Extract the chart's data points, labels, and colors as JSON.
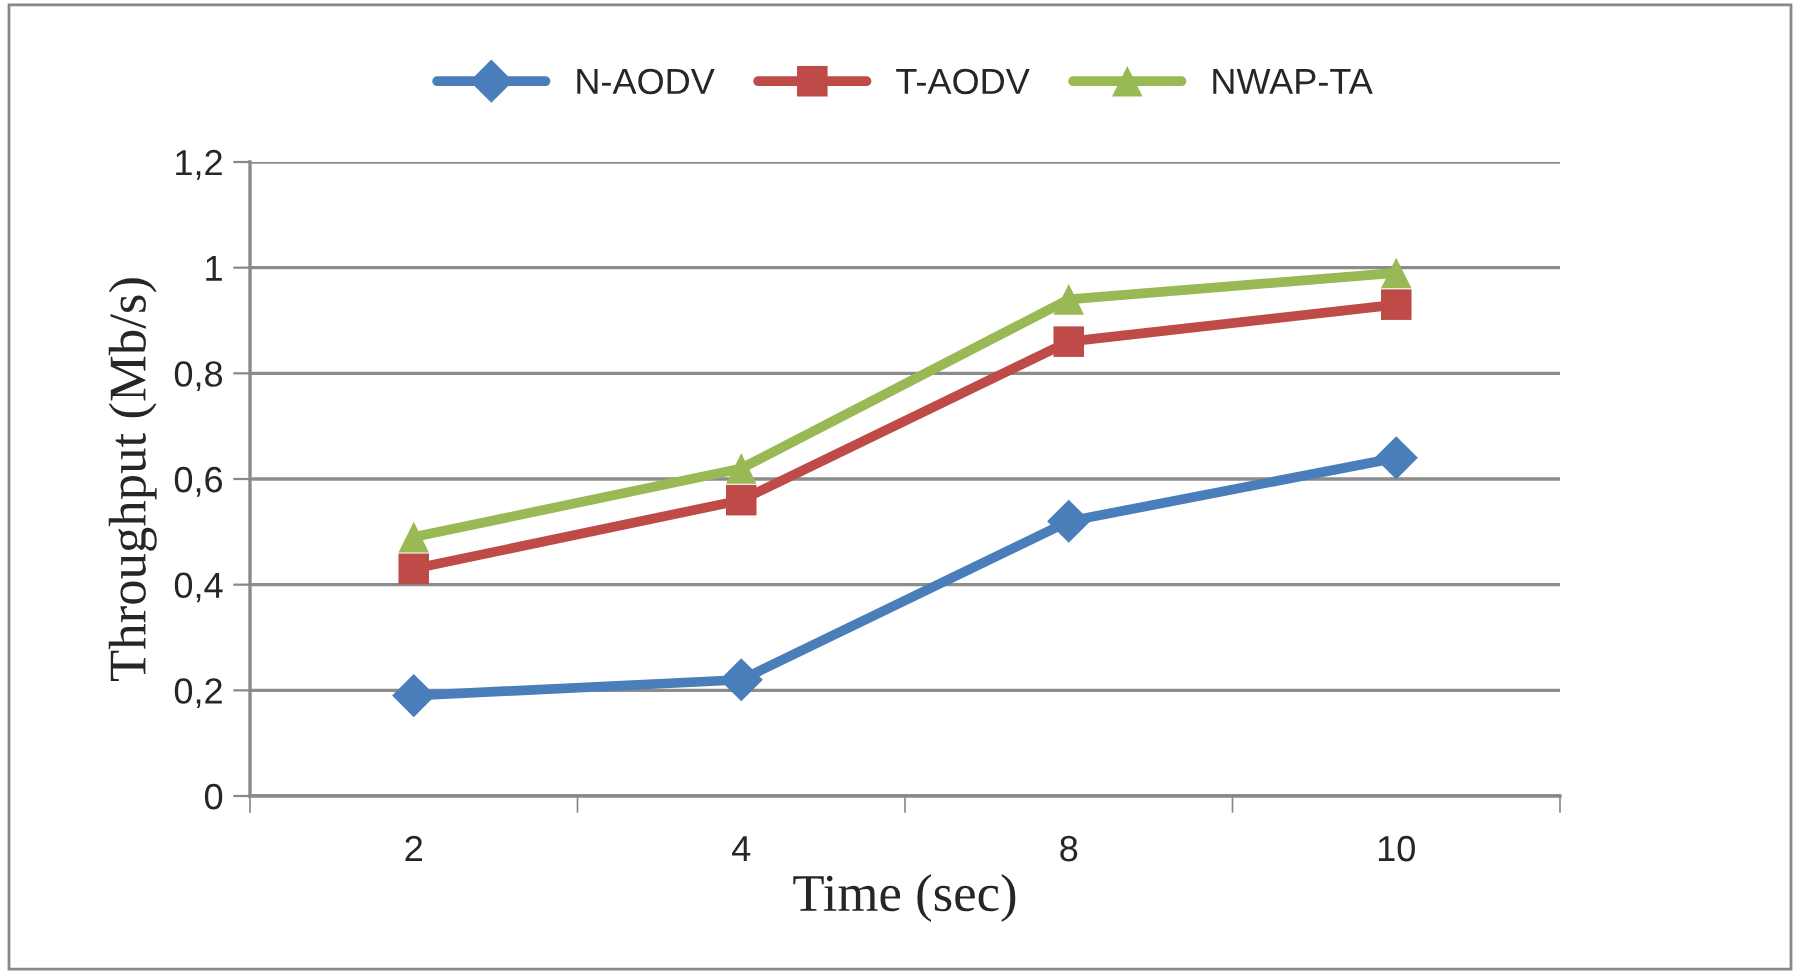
{
  "chart_data": {
    "type": "line",
    "xlabel": "Time (sec)",
    "ylabel": "Throughput (Mb/s)",
    "categories": [
      "2",
      "4",
      "8",
      "10"
    ],
    "series": [
      {
        "name": "N-AODV",
        "color": "#4a7ebb",
        "marker": "diamond",
        "values": [
          0.19,
          0.22,
          0.52,
          0.64
        ]
      },
      {
        "name": "T-AODV",
        "color": "#be4b48",
        "marker": "square",
        "values": [
          0.43,
          0.56,
          0.86,
          0.93
        ]
      },
      {
        "name": "NWAP-TA",
        "color": "#98b954",
        "marker": "triangle",
        "values": [
          0.49,
          0.62,
          0.94,
          0.99
        ]
      }
    ],
    "ylim": [
      0,
      1.2
    ],
    "yticks": [
      {
        "value": 0,
        "label": "0"
      },
      {
        "value": 0.2,
        "label": "0,2"
      },
      {
        "value": 0.4,
        "label": "0,4"
      },
      {
        "value": 0.6,
        "label": "0,6"
      },
      {
        "value": 0.8,
        "label": "0,8"
      },
      {
        "value": 1,
        "label": "1"
      },
      {
        "value": 1.2,
        "label": "1,2"
      }
    ],
    "grid": "y",
    "legend": "top",
    "line_style": "solid"
  }
}
